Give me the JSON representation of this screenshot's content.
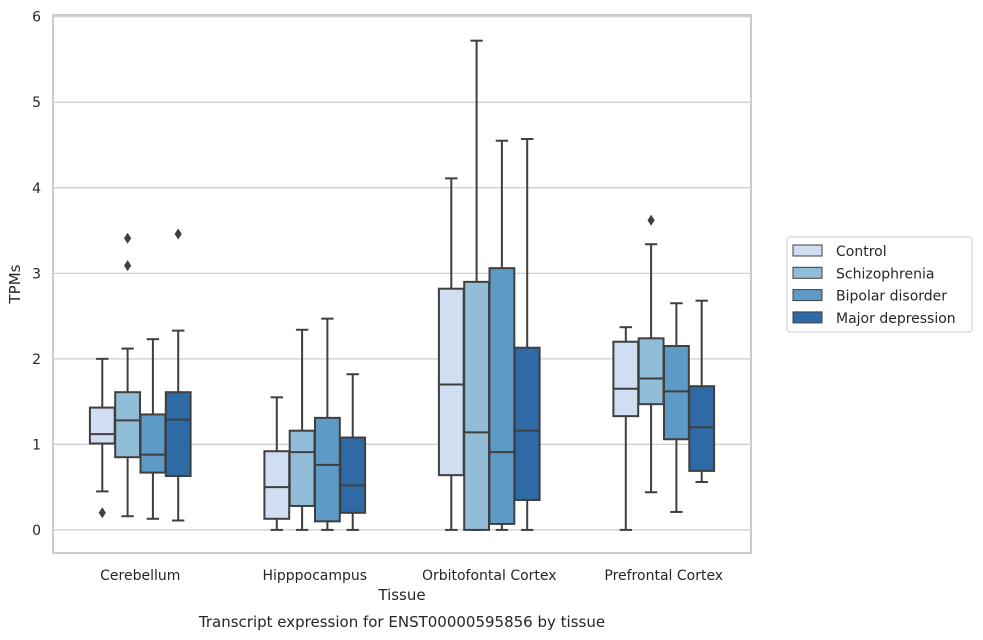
{
  "chart_data": {
    "type": "box",
    "caption": "Transcript expression for ENST00000595856 by tissue",
    "xlabel": "Tissue",
    "ylabel": "TPMs",
    "ylim": [
      -0.27,
      6.02
    ],
    "yticks": [
      "0",
      "1",
      "2",
      "3",
      "4",
      "5",
      "6"
    ],
    "grid": "horizontal",
    "legend_position": "right",
    "categories": [
      "Cerebellum",
      "Hipppocampus",
      "Orbitofontal Cortex",
      "Prefrontal Cortex"
    ],
    "series": [
      {
        "name": "Control",
        "color": "#cfdef0",
        "boxes": [
          {
            "whislo": 0.45,
            "q1": 1.01,
            "med": 1.12,
            "q3": 1.43,
            "whishi": 2.0,
            "fliers": [
              0.2
            ]
          },
          {
            "whislo": 0.0,
            "q1": 0.13,
            "med": 0.5,
            "q3": 0.92,
            "whishi": 1.55,
            "fliers": []
          },
          {
            "whislo": 0.0,
            "q1": 0.64,
            "med": 1.7,
            "q3": 2.82,
            "whishi": 4.11,
            "fliers": []
          },
          {
            "whislo": 0.0,
            "q1": 1.33,
            "med": 1.65,
            "q3": 2.2,
            "whishi": 2.37,
            "fliers": []
          }
        ]
      },
      {
        "name": "Schizophrenia",
        "color": "#92bdd8",
        "boxes": [
          {
            "whislo": 0.16,
            "q1": 0.85,
            "med": 1.28,
            "q3": 1.61,
            "whishi": 2.12,
            "fliers": [
              3.09,
              3.41
            ]
          },
          {
            "whislo": 0.0,
            "q1": 0.28,
            "med": 0.91,
            "q3": 1.16,
            "whishi": 2.34,
            "fliers": []
          },
          {
            "whislo": 0.0,
            "q1": 0.0,
            "med": 1.14,
            "q3": 2.9,
            "whishi": 5.72,
            "fliers": []
          },
          {
            "whislo": 0.44,
            "q1": 1.47,
            "med": 1.77,
            "q3": 2.24,
            "whishi": 3.34,
            "fliers": [
              3.62
            ]
          }
        ]
      },
      {
        "name": "Bipolar disorder",
        "color": "#5e9ac6",
        "boxes": [
          {
            "whislo": 0.13,
            "q1": 0.67,
            "med": 0.88,
            "q3": 1.35,
            "whishi": 2.23,
            "fliers": []
          },
          {
            "whislo": 0.0,
            "q1": 0.1,
            "med": 0.76,
            "q3": 1.31,
            "whishi": 2.47,
            "fliers": []
          },
          {
            "whislo": 0.0,
            "q1": 0.07,
            "med": 0.91,
            "q3": 3.06,
            "whishi": 4.55,
            "fliers": []
          },
          {
            "whislo": 0.21,
            "q1": 1.06,
            "med": 1.62,
            "q3": 2.15,
            "whishi": 2.65,
            "fliers": []
          }
        ]
      },
      {
        "name": "Major depression",
        "color": "#2d6aa6",
        "boxes": [
          {
            "whislo": 0.11,
            "q1": 0.63,
            "med": 1.29,
            "q3": 1.61,
            "whishi": 2.33,
            "fliers": [
              3.46
            ]
          },
          {
            "whislo": 0.0,
            "q1": 0.2,
            "med": 0.52,
            "q3": 1.08,
            "whishi": 1.82,
            "fliers": []
          },
          {
            "whislo": 0.0,
            "q1": 0.35,
            "med": 1.16,
            "q3": 2.13,
            "whishi": 4.57,
            "fliers": []
          },
          {
            "whislo": 0.56,
            "q1": 0.69,
            "med": 1.2,
            "q3": 1.68,
            "whishi": 2.68,
            "fliers": []
          }
        ]
      }
    ]
  }
}
